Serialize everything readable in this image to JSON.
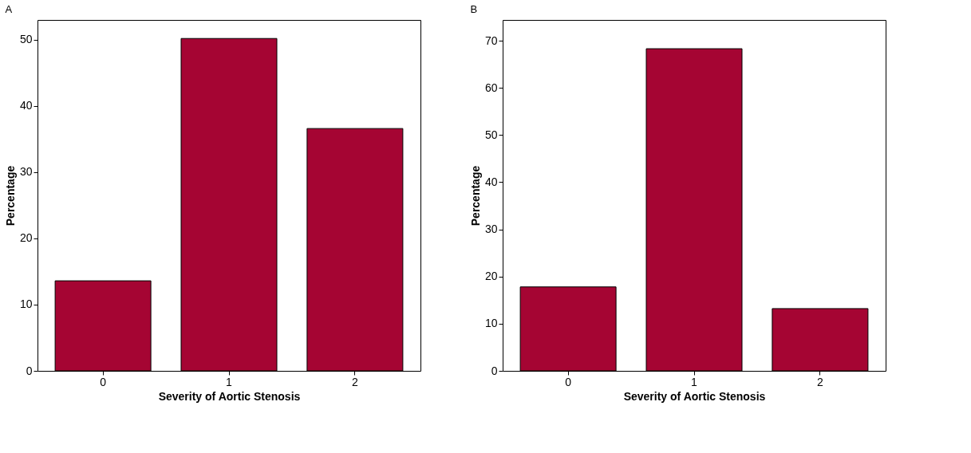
{
  "chart_data": [
    {
      "type": "bar",
      "title": "A",
      "xlabel": "Severity of Aortic Stenosis",
      "ylabel": "Percentage",
      "categories": [
        "0",
        "1",
        "2"
      ],
      "color": "#a50533",
      "values": [
        13.6,
        50.2,
        36.6
      ],
      "ylim": [
        0,
        53
      ],
      "yticks": [
        0,
        10,
        20,
        30,
        40,
        50
      ],
      "grid": false
    },
    {
      "type": "bar",
      "title": "B",
      "xlabel": "Severity of Aortic Stenosis",
      "ylabel": "Percentage",
      "categories": [
        "0",
        "1",
        "2"
      ],
      "color": "#a50533",
      "values": [
        17.8,
        68.3,
        13.2
      ],
      "ylim": [
        0,
        74.4
      ],
      "yticks": [
        0,
        10,
        20,
        30,
        40,
        50,
        60,
        70
      ],
      "grid": false
    }
  ]
}
